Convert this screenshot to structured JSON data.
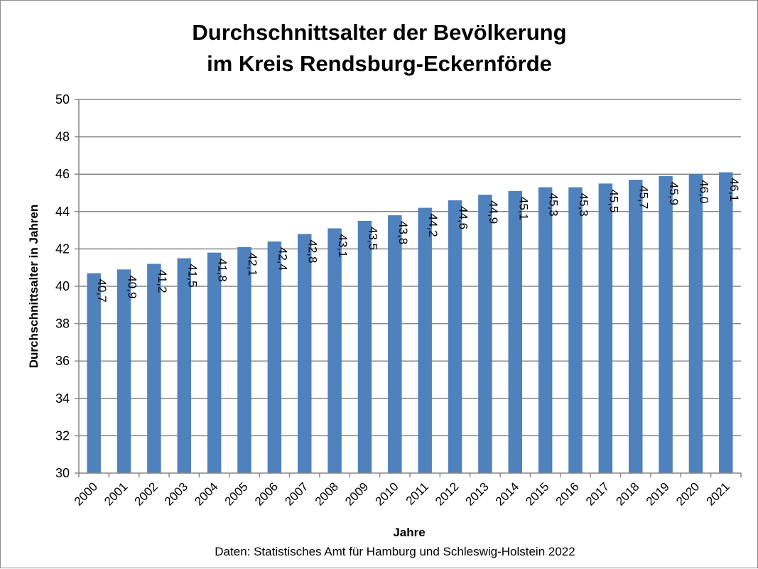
{
  "chart_data": {
    "type": "bar",
    "title_lines": [
      "Durchschnittsalter der Bevölkerung",
      "im Kreis Rendsburg-Eckernförde"
    ],
    "xlabel": "Jahre",
    "ylabel": "Durchschnittsalter  in Jahren",
    "source": "Daten: Statistisches Amt für Hamburg und Schleswig-Holstein 2022",
    "categories": [
      "2000",
      "2001",
      "2002",
      "2003",
      "2004",
      "2005",
      "2006",
      "2007",
      "2008",
      "2009",
      "2010",
      "2011",
      "2012",
      "2013",
      "2014",
      "2015",
      "2016",
      "2017",
      "2018",
      "2019",
      "2020",
      "2021"
    ],
    "values": [
      40.7,
      40.9,
      41.2,
      41.5,
      41.8,
      42.1,
      42.4,
      42.8,
      43.1,
      43.5,
      43.8,
      44.2,
      44.6,
      44.9,
      45.1,
      45.3,
      45.3,
      45.5,
      45.7,
      45.9,
      46.0,
      46.1
    ],
    "value_labels": [
      "40,7",
      "40,9",
      "41,2",
      "41,5",
      "41,8",
      "42,1",
      "42,4",
      "42,8",
      "43,1",
      "43,5",
      "43,8",
      "44,2",
      "44,6",
      "44,9",
      "45,1",
      "45,3",
      "45,3",
      "45,5",
      "45,7",
      "45,9",
      "46,0",
      "46,1"
    ],
    "ylim": [
      30,
      50
    ],
    "yticks": [
      30,
      32,
      34,
      36,
      38,
      40,
      42,
      44,
      46,
      48,
      50
    ],
    "grid": true,
    "legend": "none",
    "bar_color": "#4f81bd"
  }
}
